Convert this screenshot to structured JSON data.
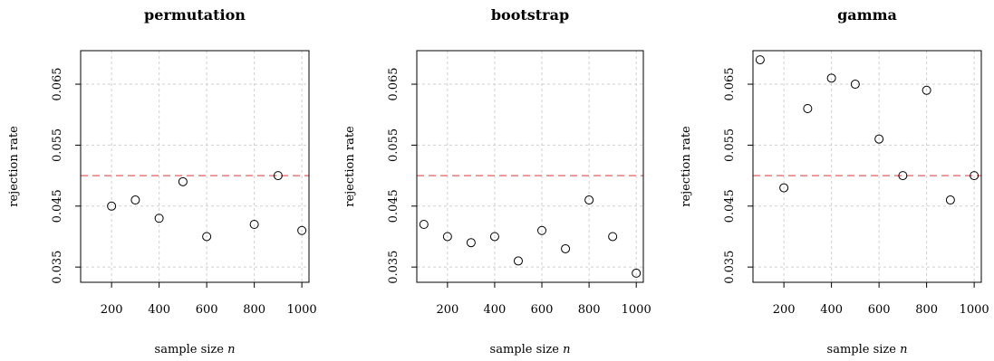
{
  "chart_data": [
    {
      "type": "scatter",
      "title": "permutation",
      "xlabel": "sample size n",
      "ylabel": "rejection rate",
      "xlim": [
        70,
        1030
      ],
      "ylim": [
        0.0325,
        0.0705
      ],
      "xticks": [
        200,
        400,
        600,
        800,
        1000
      ],
      "yticks": [
        0.035,
        0.045,
        0.055,
        0.065
      ],
      "ytick_labels": [
        "0.035",
        "0.045",
        "0.055",
        "0.065"
      ],
      "grid": true,
      "reference_line": 0.05,
      "x": [
        200,
        300,
        400,
        500,
        600,
        800,
        900,
        1000
      ],
      "y": [
        0.045,
        0.046,
        0.043,
        0.049,
        0.04,
        0.042,
        0.05,
        0.041
      ]
    },
    {
      "type": "scatter",
      "title": "bootstrap",
      "xlabel": "sample size n",
      "ylabel": "rejection rate",
      "xlim": [
        70,
        1030
      ],
      "ylim": [
        0.0325,
        0.0705
      ],
      "xticks": [
        200,
        400,
        600,
        800,
        1000
      ],
      "yticks": [
        0.035,
        0.045,
        0.055,
        0.065
      ],
      "ytick_labels": [
        "0.035",
        "0.045",
        "0.055",
        "0.065"
      ],
      "grid": true,
      "reference_line": 0.05,
      "x": [
        100,
        200,
        300,
        400,
        500,
        600,
        700,
        800,
        900,
        1000
      ],
      "y": [
        0.042,
        0.04,
        0.039,
        0.04,
        0.036,
        0.041,
        0.038,
        0.046,
        0.04,
        0.034
      ]
    },
    {
      "type": "scatter",
      "title": "gamma",
      "xlabel": "sample size n",
      "ylabel": "rejection rate",
      "xlim": [
        70,
        1030
      ],
      "ylim": [
        0.0325,
        0.0705
      ],
      "xticks": [
        200,
        400,
        600,
        800,
        1000
      ],
      "yticks": [
        0.035,
        0.045,
        0.055,
        0.065
      ],
      "ytick_labels": [
        "0.035",
        "0.045",
        "0.055",
        "0.065"
      ],
      "grid": true,
      "reference_line": 0.05,
      "x": [
        100,
        200,
        300,
        400,
        500,
        600,
        700,
        800,
        900,
        1000
      ],
      "y": [
        0.069,
        0.048,
        0.061,
        0.066,
        0.065,
        0.056,
        0.05,
        0.064,
        0.046,
        0.05
      ]
    }
  ],
  "colors": {
    "reference_line": "#e06060",
    "points": "#000000",
    "grid": "#cfcfcf"
  }
}
